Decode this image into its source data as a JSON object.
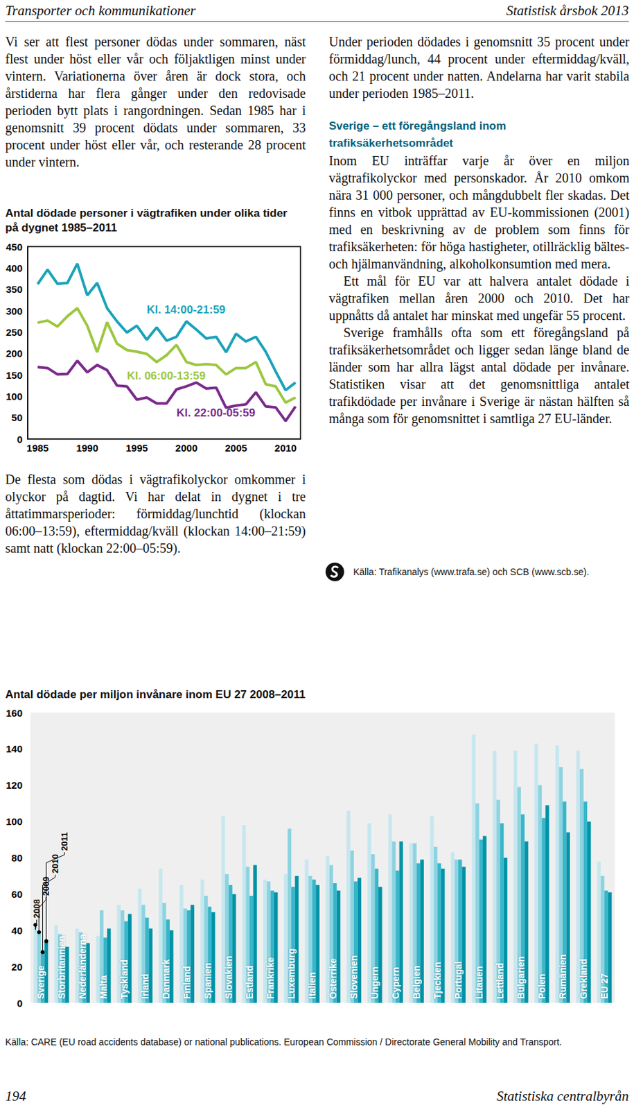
{
  "header": {
    "left": "Transporter och kommunikationer",
    "right": "Statistisk årsbok 2013"
  },
  "left_column": {
    "top": "Vi ser att flest personer dödas under sommaren, näst flest under höst eller vår och följaktligen minst under vintern. Variationerna över åren är dock stora, och årstiderna har flera gånger under den redovisade perioden bytt plats i rangordningen. Sedan 1985 har i genomsnitt 39 procent dödats under sommaren, 33 procent under höst eller vår, och resterande 28 procent under vintern.",
    "bottom": "De flesta som dödas i vägtrafikolyckor omkommer i olyckor på dagtid. Vi har delat in dygnet i tre åttatimmarsperioder: förmiddag/lunchtid (klockan 06:00–13:59), eftermiddag/kväll (klockan 14:00–21:59) samt natt (klockan 22:00–05:59)."
  },
  "right_column": {
    "intro": "Under perioden dödades i genomsnitt 35 procent under förmiddag/lunch, 44 procent under eftermiddag/kväll, och 21 procent under natten. Andelarna har varit stabila under perioden 1985–2011.",
    "heading": "Sverige – ett föregångsland inom trafiksäkerhetsområdet",
    "paragraphs": [
      "Inom EU inträffar varje år över en miljon vägtrafikolyckor med personskador. År 2010 omkom nära 31 000 personer, och mångdubbelt fler skadas. Det finns en vitbok upprättad av EU-kommissionen (2001) med en beskrivning av de problem som finns för trafiksäkerheten: för höga hastigheter, otillräcklig bältes- och hjälmanvändning, alkoholkonsumtion med mera.",
      "Ett mål för EU var att halvera antalet dödade i vägtrafiken mellan åren 2000 och 2010. Det har uppnåtts då antalet har minskat med ungefär 55 procent.",
      "Sverige framhålls ofta som ett föregångsland på trafiksäkerhetsområdet och ligger sedan länge bland de länder som har allra lägst antal dödade per invånare. Statistiken visar att det genomsnittliga antalet trafikdödade per invånare i Sverige är nästan hälften så många som för genomsnittet i samtliga 27 EU-länder."
    ],
    "source": "Källa: Trafikanalys (www.trafa.se) och SCB (www.scb.se)."
  },
  "chart_data": [
    {
      "type": "line",
      "title": "Antal dödade personer i vägtrafiken under olika tider på dygnet 1985–2011",
      "x": [
        1985,
        1986,
        1987,
        1988,
        1989,
        1990,
        1991,
        1992,
        1993,
        1994,
        1995,
        1996,
        1997,
        1998,
        1999,
        2000,
        2001,
        2002,
        2003,
        2004,
        2005,
        2006,
        2007,
        2008,
        2009,
        2010,
        2011
      ],
      "series": [
        {
          "name": "Kl. 14:00-21:59",
          "color": "#1aa3b9",
          "values": [
            362,
            396,
            363,
            365,
            410,
            336,
            365,
            306,
            275,
            249,
            265,
            232,
            261,
            230,
            239,
            275,
            256,
            235,
            239,
            203,
            246,
            228,
            239,
            204,
            158,
            114,
            132
          ]
        },
        {
          "name": "Kl. 06:00-13:59",
          "color": "#9cc73f",
          "values": [
            272,
            277,
            263,
            287,
            306,
            265,
            203,
            273,
            223,
            208,
            204,
            199,
            180,
            196,
            220,
            180,
            173,
            175,
            173,
            151,
            166,
            166,
            180,
            128,
            123,
            85,
            97
          ]
        },
        {
          "name": "Kl. 22:00-05:59",
          "color": "#7b2a8b",
          "values": [
            168,
            166,
            151,
            152,
            183,
            156,
            173,
            161,
            125,
            123,
            92,
            97,
            83,
            83,
            116,
            123,
            132,
            118,
            120,
            73,
            78,
            81,
            109,
            76,
            74,
            42,
            76
          ]
        }
      ],
      "xlim": [
        1984,
        2011.5
      ],
      "xticks": [
        1985,
        1990,
        1995,
        2000,
        2005,
        2010
      ],
      "ylim": [
        0,
        450
      ],
      "yticks": [
        0,
        50,
        100,
        150,
        200,
        250,
        300,
        350,
        400,
        450
      ],
      "grid": false
    },
    {
      "type": "bar",
      "title": "Antal dödade per miljon invånare inom EU 27 2008–2011",
      "categories": [
        "Sverige",
        "Storbritannien",
        "Nederländerna",
        "Malta",
        "Tyskland",
        "Irland",
        "Danmark",
        "Finland",
        "Spanien",
        "Slovakien",
        "Estland",
        "Frankrike",
        "Luxemburg",
        "Italien",
        "Österrike",
        "Slovenien",
        "Ungern",
        "Cypern",
        "Belgien",
        "Tjeckien",
        "Portugal",
        "Litauen",
        "Lettland",
        "Bulgarien",
        "Polen",
        "Rumänien",
        "Grekland",
        "EU 27"
      ],
      "series": [
        {
          "name": "2008",
          "color": "#c6e7ef",
          "values": [
            43,
            43,
            41,
            37,
            54,
            63,
            74,
            65,
            68,
            103,
            98,
            68,
            71,
            79,
            81,
            106,
            99,
            104,
            88,
            103,
            83,
            148,
            139,
            139,
            143,
            142,
            139,
            78
          ]
        },
        {
          "name": "2009",
          "color": "#8dd3e0",
          "values": [
            39,
            38,
            39,
            51,
            51,
            54,
            55,
            52,
            59,
            71,
            75,
            67,
            96,
            70,
            76,
            84,
            82,
            89,
            88,
            86,
            79,
            110,
            112,
            119,
            120,
            130,
            129,
            70
          ]
        },
        {
          "name": "2010",
          "color": "#38b6ca",
          "values": [
            28,
            30,
            32,
            36,
            45,
            47,
            46,
            51,
            53,
            65,
            59,
            62,
            64,
            68,
            66,
            67,
            74,
            73,
            77,
            77,
            79,
            90,
            99,
            104,
            102,
            111,
            111,
            62
          ]
        },
        {
          "name": "2011",
          "color": "#0093a7",
          "values": [
            34,
            31,
            33,
            41,
            49,
            41,
            40,
            54,
            50,
            60,
            76,
            61,
            70,
            65,
            62,
            69,
            64,
            89,
            79,
            74,
            75,
            92,
            80,
            89,
            109,
            94,
            100,
            61
          ]
        }
      ],
      "ylim": [
        0,
        160
      ],
      "yticks": [
        0,
        20,
        40,
        60,
        80,
        100,
        120,
        140,
        160
      ],
      "grid": false
    }
  ],
  "bar_chart_source": "Källa: CARE (EU road accidents database) or national publications. European Commission / Directorate General Mobility and Transport.",
  "footer": {
    "page": "194",
    "publisher": "Statistiska centralbyrån"
  }
}
